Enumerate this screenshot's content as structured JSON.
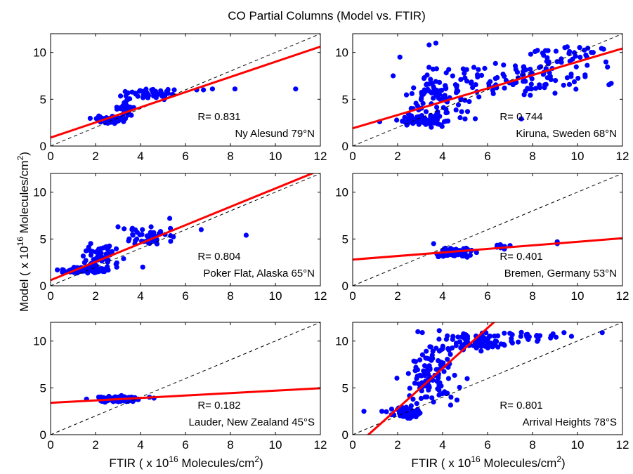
{
  "figure": {
    "title": "CO Partial Columns (Model vs. FTIR)",
    "ylabel": {
      "main": "Model ( x 10",
      "sup": "16",
      "tail": " Molecules/cm",
      "sup2": "2",
      "end": ")"
    },
    "xlabel": {
      "main": "FTIR ( x 10",
      "sup": "16",
      "tail": " Molecules/cm",
      "sup2": "2",
      "end": ")"
    }
  },
  "colors": {
    "points": "#0000ff",
    "fit": "#ff0000",
    "one_to_one": "#000000",
    "r_text": "#ff0000"
  },
  "chart_data": [
    {
      "type": "scatter",
      "station": "Ny Alesund 79°N",
      "r_label": "R= 0.831",
      "xlim": [
        0,
        12
      ],
      "ylim": [
        0,
        12
      ],
      "xticks": [
        0,
        2,
        4,
        6,
        8,
        10,
        12
      ],
      "yticks": [
        0,
        5,
        10
      ],
      "fit": {
        "intercept": 0.9,
        "slope": 0.81
      },
      "one_to_one": true,
      "clusters": [
        {
          "cx": 2.6,
          "cy": 2.8,
          "sx": 0.45,
          "sy": 0.25,
          "n": 60
        },
        {
          "cx": 4.4,
          "cy": 5.6,
          "sx": 0.7,
          "sy": 0.35,
          "n": 50
        },
        {
          "cx": 3.3,
          "cy": 4.0,
          "sx": 0.4,
          "sy": 0.6,
          "n": 25
        }
      ],
      "points": [
        [
          6.5,
          6.0
        ],
        [
          6.8,
          6.0
        ],
        [
          7.2,
          6.1
        ],
        [
          8.2,
          6.1
        ],
        [
          10.9,
          6.1
        ],
        [
          5.5,
          6.0
        ]
      ]
    },
    {
      "type": "scatter",
      "station": "Kiruna, Sweden 68°N",
      "r_label": "R= 0.744",
      "xlim": [
        0,
        12
      ],
      "ylim": [
        0,
        12
      ],
      "xticks": [
        0,
        2,
        4,
        6,
        8,
        10,
        12
      ],
      "yticks": [
        0,
        5,
        10
      ],
      "fit": {
        "intercept": 1.9,
        "slope": 0.71
      },
      "one_to_one": true,
      "clusters": [
        {
          "cx": 3.2,
          "cy": 2.7,
          "sx": 0.7,
          "sy": 0.4,
          "n": 80
        },
        {
          "cx": 3.8,
          "cy": 5.5,
          "sx": 1.1,
          "sy": 1.8,
          "n": 90
        },
        {
          "cx": 7.5,
          "cy": 7.0,
          "sx": 2.2,
          "sy": 1.3,
          "n": 90
        },
        {
          "cx": 9.5,
          "cy": 9.8,
          "sx": 1.6,
          "sy": 0.8,
          "n": 35
        }
      ],
      "points": [
        [
          1.2,
          2.6
        ],
        [
          1.8,
          7.5
        ],
        [
          2.1,
          9.5
        ],
        [
          3.7,
          11.0
        ],
        [
          3.4,
          10.8
        ],
        [
          11.5,
          6.7
        ],
        [
          5.0,
          2.9
        ],
        [
          7.5,
          2.9
        ]
      ]
    },
    {
      "type": "scatter",
      "station": "Poker Flat, Alaska 65°N",
      "r_label": "R= 0.804",
      "xlim": [
        0,
        12
      ],
      "ylim": [
        0,
        12
      ],
      "xticks": [
        0,
        2,
        4,
        6,
        8,
        10,
        12
      ],
      "yticks": [
        0,
        5,
        10
      ],
      "fit": {
        "intercept": 0.6,
        "slope": 0.98
      },
      "one_to_one": true,
      "clusters": [
        {
          "cx": 1.5,
          "cy": 1.7,
          "sx": 0.55,
          "sy": 0.25,
          "n": 90
        },
        {
          "cx": 2.3,
          "cy": 3.0,
          "sx": 0.6,
          "sy": 1.2,
          "n": 60
        },
        {
          "cx": 4.4,
          "cy": 5.2,
          "sx": 0.8,
          "sy": 0.8,
          "n": 45
        }
      ],
      "points": [
        [
          0.3,
          1.7
        ],
        [
          4.1,
          2.0
        ],
        [
          5.3,
          7.2
        ],
        [
          6.7,
          6.0
        ],
        [
          8.7,
          5.4
        ],
        [
          3.0,
          6.3
        ]
      ]
    },
    {
      "type": "scatter",
      "station": "Bremen, Germany 53°N",
      "r_label": "R= 0.401",
      "xlim": [
        0,
        12
      ],
      "ylim": [
        0,
        12
      ],
      "xticks": [
        0,
        2,
        4,
        6,
        8,
        10,
        12
      ],
      "yticks": [
        0,
        5,
        10
      ],
      "fit": {
        "intercept": 2.8,
        "slope": 0.19
      },
      "one_to_one": true,
      "clusters": [
        {
          "cx": 4.5,
          "cy": 3.6,
          "sx": 0.55,
          "sy": 0.35,
          "n": 90
        },
        {
          "cx": 6.4,
          "cy": 4.2,
          "sx": 0.4,
          "sy": 0.15,
          "n": 12
        }
      ],
      "points": [
        [
          9.1,
          4.5
        ],
        [
          9.1,
          4.7
        ],
        [
          3.6,
          4.5
        ],
        [
          7.0,
          4.3
        ]
      ]
    },
    {
      "type": "scatter",
      "station": "Lauder, New Zealand 45°S",
      "r_label": "R= 0.182",
      "xlim": [
        0,
        12
      ],
      "ylim": [
        0,
        12
      ],
      "xticks": [
        0,
        2,
        4,
        6,
        8,
        10,
        12
      ],
      "yticks": [
        0,
        5,
        10
      ],
      "fit": {
        "intercept": 3.4,
        "slope": 0.13
      },
      "one_to_one": true,
      "clusters": [
        {
          "cx": 3.1,
          "cy": 3.8,
          "sx": 0.55,
          "sy": 0.18,
          "n": 180
        }
      ],
      "points": [
        [
          1.6,
          3.8
        ],
        [
          4.4,
          4.0
        ],
        [
          4.6,
          3.9
        ]
      ]
    },
    {
      "type": "scatter",
      "station": "Arrival Heights 78°S",
      "r_label": "R= 0.801",
      "xlim": [
        0,
        12
      ],
      "ylim": [
        0,
        12
      ],
      "xticks": [
        0,
        2,
        4,
        6,
        8,
        10,
        12
      ],
      "yticks": [
        0,
        5,
        10
      ],
      "fit": {
        "intercept": -1.5,
        "slope": 2.15
      },
      "one_to_one": true,
      "clusters": [
        {
          "cx": 2.3,
          "cy": 2.3,
          "sx": 0.45,
          "sy": 0.45,
          "n": 70
        },
        {
          "cx": 3.5,
          "cy": 6.5,
          "sx": 0.8,
          "sy": 2.2,
          "n": 110
        },
        {
          "cx": 5.5,
          "cy": 10.0,
          "sx": 1.2,
          "sy": 0.8,
          "n": 80
        },
        {
          "cx": 8.0,
          "cy": 10.5,
          "sx": 0.9,
          "sy": 0.3,
          "n": 25
        }
      ],
      "points": [
        [
          0.5,
          2.5
        ],
        [
          1.3,
          2.5
        ],
        [
          11.1,
          10.9
        ],
        [
          9.4,
          10.9
        ],
        [
          2.9,
          11.0
        ]
      ]
    }
  ]
}
